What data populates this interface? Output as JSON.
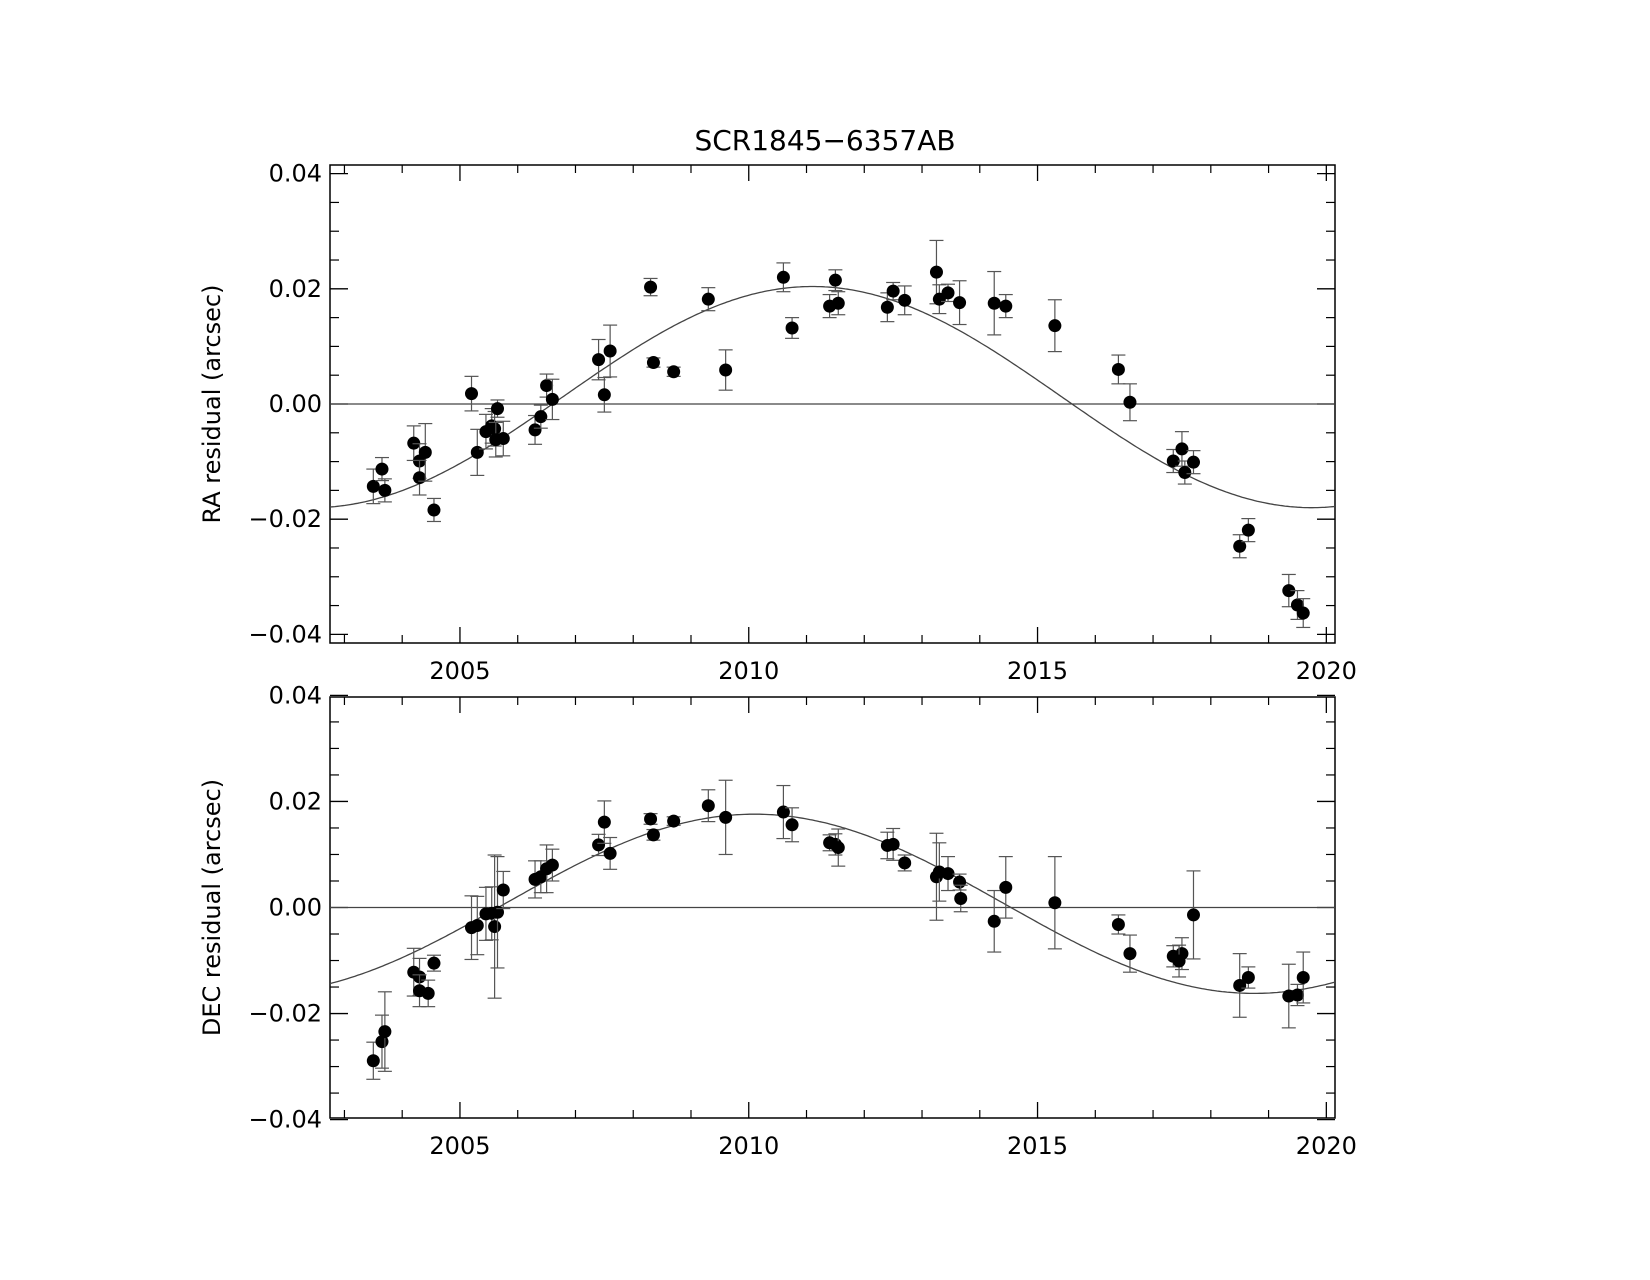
{
  "chart_data": [
    {
      "type": "scatter",
      "title": "SCR1845−6357AB",
      "xlabel": "",
      "ylabel": "RA residual (arcsec)",
      "xlim": [
        2002.75,
        2020.15
      ],
      "ylim": [
        -0.0415,
        0.0415
      ],
      "xticks": [
        2005,
        2010,
        2015,
        2020
      ],
      "xtick_labels": [
        "2005",
        "2010",
        "2015",
        "2020"
      ],
      "yticks": [
        0.04,
        0.02,
        0.0,
        -0.02,
        -0.04
      ],
      "ytick_labels": [
        "0.04",
        "0.02",
        "0.00",
        "−0.02",
        "−0.04"
      ],
      "grid": false,
      "reference_line": 0.0,
      "fit_curve": {
        "type": "sinusoid",
        "amplitude": 0.0192,
        "offset": 0.0012,
        "period_years": 17.3,
        "peak_epoch": 2011.1
      },
      "series": [
        {
          "points": [
            {
              "x": 2003.5,
              "y": -0.0143,
              "err": 0.003
            },
            {
              "x": 2003.65,
              "y": -0.0113,
              "err": 0.002
            },
            {
              "x": 2003.7,
              "y": -0.015,
              "err": 0.002
            },
            {
              "x": 2004.2,
              "y": -0.0068,
              "err": 0.003
            },
            {
              "x": 2004.3,
              "y": -0.0099,
              "err": 0.003
            },
            {
              "x": 2004.3,
              "y": -0.0128,
              "err": 0.003
            },
            {
              "x": 2004.4,
              "y": -0.0084,
              "err": 0.005
            },
            {
              "x": 2004.55,
              "y": -0.0184,
              "err": 0.002
            },
            {
              "x": 2005.2,
              "y": 0.0018,
              "err": 0.003
            },
            {
              "x": 2005.3,
              "y": -0.0084,
              "err": 0.004
            },
            {
              "x": 2005.45,
              "y": -0.0048,
              "err": 0.003
            },
            {
              "x": 2005.55,
              "y": -0.0038,
              "err": 0.003
            },
            {
              "x": 2005.6,
              "y": -0.0043,
              "err": 0.003
            },
            {
              "x": 2005.62,
              "y": -0.0062,
              "err": 0.003
            },
            {
              "x": 2005.65,
              "y": -0.0008,
              "err": 0.0015
            },
            {
              "x": 2005.75,
              "y": -0.006,
              "err": 0.003
            },
            {
              "x": 2006.3,
              "y": -0.0045,
              "err": 0.0025
            },
            {
              "x": 2006.4,
              "y": -0.0022,
              "err": 0.002
            },
            {
              "x": 2006.5,
              "y": 0.0032,
              "err": 0.002
            },
            {
              "x": 2006.6,
              "y": 0.0008,
              "err": 0.0035
            },
            {
              "x": 2007.4,
              "y": 0.0077,
              "err": 0.0035
            },
            {
              "x": 2007.5,
              "y": 0.0016,
              "err": 0.003
            },
            {
              "x": 2007.6,
              "y": 0.0092,
              "err": 0.0045
            },
            {
              "x": 2008.3,
              "y": 0.0203,
              "err": 0.0015
            },
            {
              "x": 2008.35,
              "y": 0.0072,
              "err": 0.0008
            },
            {
              "x": 2008.7,
              "y": 0.0056,
              "err": 0.0008
            },
            {
              "x": 2009.3,
              "y": 0.0182,
              "err": 0.002
            },
            {
              "x": 2009.6,
              "y": 0.0059,
              "err": 0.0035
            },
            {
              "x": 2010.6,
              "y": 0.022,
              "err": 0.0025
            },
            {
              "x": 2010.75,
              "y": 0.0132,
              "err": 0.0018
            },
            {
              "x": 2011.4,
              "y": 0.017,
              "err": 0.002
            },
            {
              "x": 2011.5,
              "y": 0.0215,
              "err": 0.0018
            },
            {
              "x": 2011.55,
              "y": 0.0175,
              "err": 0.002
            },
            {
              "x": 2012.4,
              "y": 0.0168,
              "err": 0.0025
            },
            {
              "x": 2012.5,
              "y": 0.0196,
              "err": 0.0015
            },
            {
              "x": 2012.7,
              "y": 0.018,
              "err": 0.0025
            },
            {
              "x": 2013.25,
              "y": 0.0229,
              "err": 0.0055
            },
            {
              "x": 2013.3,
              "y": 0.0182,
              "err": 0.0025
            },
            {
              "x": 2013.45,
              "y": 0.0193,
              "err": 0.0015
            },
            {
              "x": 2013.65,
              "y": 0.0176,
              "err": 0.0038
            },
            {
              "x": 2014.25,
              "y": 0.0175,
              "err": 0.0055
            },
            {
              "x": 2014.45,
              "y": 0.017,
              "err": 0.002
            },
            {
              "x": 2015.3,
              "y": 0.0136,
              "err": 0.0045
            },
            {
              "x": 2016.4,
              "y": 0.006,
              "err": 0.0025
            },
            {
              "x": 2016.6,
              "y": 0.0003,
              "err": 0.0032
            },
            {
              "x": 2017.35,
              "y": -0.0099,
              "err": 0.002
            },
            {
              "x": 2017.5,
              "y": -0.0078,
              "err": 0.003
            },
            {
              "x": 2017.55,
              "y": -0.0119,
              "err": 0.002
            },
            {
              "x": 2017.7,
              "y": -0.0101,
              "err": 0.002
            },
            {
              "x": 2018.5,
              "y": -0.0247,
              "err": 0.002
            },
            {
              "x": 2018.65,
              "y": -0.0219,
              "err": 0.002
            },
            {
              "x": 2019.35,
              "y": -0.0324,
              "err": 0.0028
            },
            {
              "x": 2019.5,
              "y": -0.0349,
              "err": 0.0025
            },
            {
              "x": 2019.6,
              "y": -0.0363,
              "err": 0.0025
            }
          ]
        }
      ]
    },
    {
      "type": "scatter",
      "title": "",
      "xlabel": "",
      "ylabel": "DEC residual (arcsec)",
      "xlim": [
        2002.75,
        2020.15
      ],
      "ylim": [
        -0.0397,
        0.0397
      ],
      "xticks": [
        2005,
        2010,
        2015,
        2020
      ],
      "xtick_labels": [
        "2005",
        "2010",
        "2015",
        "2020"
      ],
      "yticks": [
        0.04,
        0.02,
        0.0,
        -0.02,
        -0.04
      ],
      "ytick_labels": [
        "0.04",
        "0.02",
        "0.00",
        "−0.02",
        "−0.04"
      ],
      "grid": false,
      "reference_line": 0.0,
      "fit_curve": {
        "type": "sinusoid",
        "amplitude": 0.0169,
        "offset": 0.0007,
        "period_years": 17.3,
        "peak_epoch": 2010.1
      },
      "series": [
        {
          "points": [
            {
              "x": 2003.5,
              "y": -0.0289,
              "err": 0.0035
            },
            {
              "x": 2003.65,
              "y": -0.0253,
              "err": 0.005
            },
            {
              "x": 2003.7,
              "y": -0.0234,
              "err": 0.0075
            },
            {
              "x": 2004.2,
              "y": -0.0122,
              "err": 0.0045
            },
            {
              "x": 2004.3,
              "y": -0.0131,
              "err": 0.0035
            },
            {
              "x": 2004.3,
              "y": -0.0157,
              "err": 0.003
            },
            {
              "x": 2004.45,
              "y": -0.0162,
              "err": 0.0025
            },
            {
              "x": 2004.55,
              "y": -0.0105,
              "err": 0.0015
            },
            {
              "x": 2005.2,
              "y": -0.0038,
              "err": 0.006
            },
            {
              "x": 2005.3,
              "y": -0.0034,
              "err": 0.0055
            },
            {
              "x": 2005.45,
              "y": -0.0012,
              "err": 0.005
            },
            {
              "x": 2005.55,
              "y": -0.0011,
              "err": 0.005
            },
            {
              "x": 2005.6,
              "y": -0.0036,
              "err": 0.0135
            },
            {
              "x": 2005.65,
              "y": -0.0009,
              "err": 0.0105
            },
            {
              "x": 2005.75,
              "y": 0.0033,
              "err": 0.0035
            },
            {
              "x": 2006.3,
              "y": 0.0053,
              "err": 0.0035
            },
            {
              "x": 2006.4,
              "y": 0.0058,
              "err": 0.003
            },
            {
              "x": 2006.5,
              "y": 0.0073,
              "err": 0.0045
            },
            {
              "x": 2006.6,
              "y": 0.008,
              "err": 0.003
            },
            {
              "x": 2007.4,
              "y": 0.0118,
              "err": 0.002
            },
            {
              "x": 2007.5,
              "y": 0.0161,
              "err": 0.004
            },
            {
              "x": 2007.6,
              "y": 0.0102,
              "err": 0.003
            },
            {
              "x": 2008.3,
              "y": 0.0167,
              "err": 0.001
            },
            {
              "x": 2008.35,
              "y": 0.0137,
              "err": 0.001
            },
            {
              "x": 2008.7,
              "y": 0.0163,
              "err": 0.0008
            },
            {
              "x": 2009.3,
              "y": 0.0192,
              "err": 0.003
            },
            {
              "x": 2009.6,
              "y": 0.017,
              "err": 0.007
            },
            {
              "x": 2010.6,
              "y": 0.018,
              "err": 0.005
            },
            {
              "x": 2010.75,
              "y": 0.0156,
              "err": 0.0032
            },
            {
              "x": 2011.4,
              "y": 0.0122,
              "err": 0.0015
            },
            {
              "x": 2011.5,
              "y": 0.0119,
              "err": 0.002
            },
            {
              "x": 2011.55,
              "y": 0.0113,
              "err": 0.0035
            },
            {
              "x": 2012.4,
              "y": 0.0117,
              "err": 0.0025
            },
            {
              "x": 2012.5,
              "y": 0.0119,
              "err": 0.003
            },
            {
              "x": 2012.7,
              "y": 0.0084,
              "err": 0.0015
            },
            {
              "x": 2013.25,
              "y": 0.0058,
              "err": 0.0082
            },
            {
              "x": 2013.3,
              "y": 0.0067,
              "err": 0.0055
            },
            {
              "x": 2013.45,
              "y": 0.0064,
              "err": 0.0032
            },
            {
              "x": 2013.65,
              "y": 0.0048,
              "err": 0.0015
            },
            {
              "x": 2013.67,
              "y": 0.0017,
              "err": 0.0025
            },
            {
              "x": 2014.25,
              "y": -0.0026,
              "err": 0.0058
            },
            {
              "x": 2014.45,
              "y": 0.0038,
              "err": 0.0058
            },
            {
              "x": 2015.3,
              "y": 0.0009,
              "err": 0.0087
            },
            {
              "x": 2016.4,
              "y": -0.0032,
              "err": 0.0018
            },
            {
              "x": 2016.6,
              "y": -0.0087,
              "err": 0.0035
            },
            {
              "x": 2017.35,
              "y": -0.0092,
              "err": 0.002
            },
            {
              "x": 2017.5,
              "y": -0.0087,
              "err": 0.003
            },
            {
              "x": 2017.45,
              "y": -0.0101,
              "err": 0.003
            },
            {
              "x": 2017.7,
              "y": -0.0014,
              "err": 0.0083
            },
            {
              "x": 2018.5,
              "y": -0.0147,
              "err": 0.006
            },
            {
              "x": 2018.65,
              "y": -0.0132,
              "err": 0.002
            },
            {
              "x": 2019.35,
              "y": -0.0167,
              "err": 0.006
            },
            {
              "x": 2019.5,
              "y": -0.0165,
              "err": 0.002
            },
            {
              "x": 2019.6,
              "y": -0.0132,
              "err": 0.0048
            }
          ]
        }
      ]
    }
  ]
}
